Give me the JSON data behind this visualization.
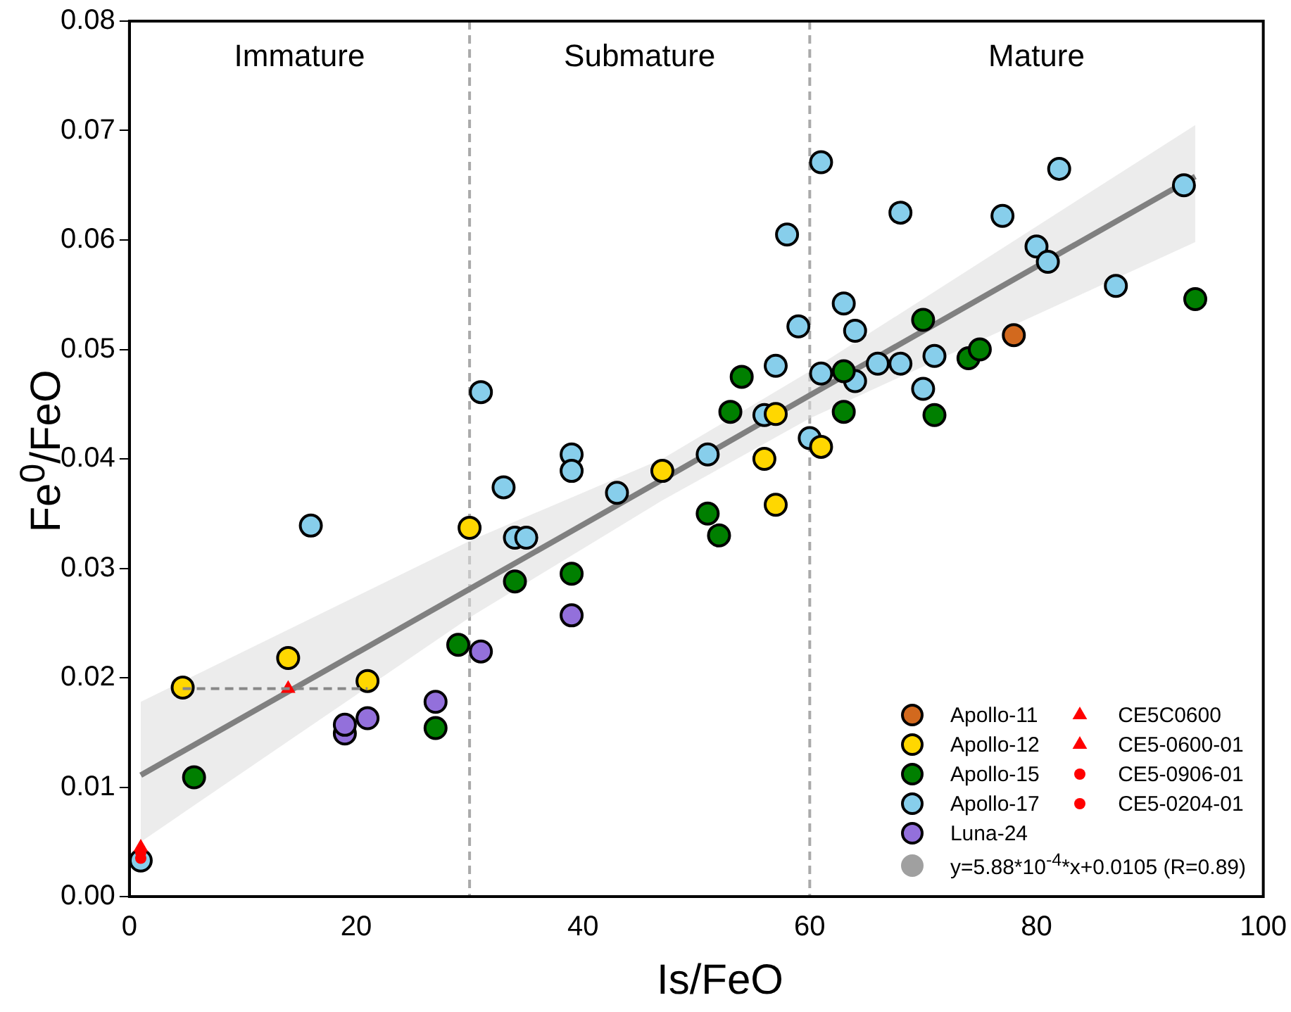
{
  "chart_data": {
    "type": "scatter",
    "xlabel": "Is/FeO",
    "ylabel": "Fe$^{0}$/FeO",
    "xlim": [
      0,
      100
    ],
    "xticks": [
      0,
      20,
      40,
      60,
      80,
      100
    ],
    "ylim": [
      0,
      0.08
    ],
    "yticks": [
      {
        "value": 0,
        "label": "0.00"
      },
      {
        "value": 0.01,
        "label": "0.01"
      },
      {
        "value": 0.02,
        "label": "0.02"
      },
      {
        "value": 0.03,
        "label": "0.03"
      },
      {
        "value": 0.04,
        "label": "0.04"
      },
      {
        "value": 0.05,
        "label": "0.05"
      },
      {
        "value": 0.06,
        "label": "0.06"
      },
      {
        "value": 0.07,
        "label": "0.07"
      },
      {
        "value": 0.08,
        "label": "0.08"
      }
    ],
    "grid": false,
    "legend": "bottom right",
    "ref_lines": [
      {
        "axis": "x",
        "value": 30,
        "color": "#aaaaaa",
        "line_style": "dashed"
      },
      {
        "axis": "x",
        "value": 60,
        "color": "#aaaaaa",
        "line_style": "dashed"
      }
    ],
    "annotations": [
      "Immature",
      "Submature",
      "Mature"
    ],
    "series": [
      {
        "name": "y=5.88*10$^{-4}$*x+0.0105 (R=0.89)",
        "type": "line",
        "color": "#808080",
        "marker": "none",
        "x": [
          1,
          30,
          47,
          60,
          94
        ],
        "values": [
          0.0111,
          0.0281,
          0.0381,
          0.0458,
          0.0658
        ],
        "lower": [
          0.005,
          0.0255,
          0.0362,
          0.0437,
          0.0598
        ],
        "upper": [
          0.0178,
          0.0325,
          0.04,
          0.048,
          0.0705
        ]
      },
      {
        "name": "Apollo-11",
        "type": "scatter",
        "marker": "circle",
        "color": "#d2691e",
        "x": [
          78
        ],
        "values": [
          0.0513
        ]
      },
      {
        "name": "Apollo-12",
        "type": "scatter",
        "marker": "circle",
        "color": "#ffd700",
        "x": [
          4.7,
          14,
          21,
          30,
          47,
          56,
          57,
          57,
          61
        ],
        "values": [
          0.0191,
          0.0218,
          0.0197,
          0.0337,
          0.0389,
          0.04,
          0.0358,
          0.0441,
          0.0411
        ]
      },
      {
        "name": "Apollo-15",
        "type": "scatter",
        "marker": "circle",
        "color": "#007f00",
        "x": [
          5.7,
          27,
          29,
          34,
          39,
          51,
          52,
          53,
          54,
          63,
          63,
          70,
          71,
          74,
          75,
          94
        ],
        "values": [
          0.0109,
          0.0154,
          0.023,
          0.0288,
          0.0295,
          0.035,
          0.033,
          0.0443,
          0.0475,
          0.048,
          0.0443,
          0.0527,
          0.044,
          0.0492,
          0.05,
          0.0546
        ]
      },
      {
        "name": "Apollo-17",
        "type": "scatter",
        "marker": "circle",
        "color": "#87ceeb",
        "x": [
          1,
          16,
          31,
          33,
          34,
          35,
          39,
          39,
          43,
          51,
          56,
          57,
          58,
          59,
          60,
          61,
          61,
          63,
          64,
          64,
          66,
          68,
          68,
          70,
          71,
          77,
          80,
          81,
          82,
          87,
          93
        ],
        "values": [
          0.0033,
          0.0339,
          0.0461,
          0.0374,
          0.0328,
          0.0328,
          0.0404,
          0.0389,
          0.0369,
          0.0404,
          0.044,
          0.0485,
          0.0605,
          0.0521,
          0.0419,
          0.0478,
          0.0671,
          0.0542,
          0.0517,
          0.0471,
          0.0487,
          0.0625,
          0.0487,
          0.0464,
          0.0494,
          0.0622,
          0.0594,
          0.058,
          0.0665,
          0.0558,
          0.065
        ]
      },
      {
        "name": "Luna-24",
        "type": "scatter",
        "marker": "circle",
        "color": "#9370db",
        "x": [
          19,
          19,
          21,
          27,
          31,
          39
        ],
        "values": [
          0.0149,
          0.0157,
          0.0163,
          0.0178,
          0.0224,
          0.0257
        ]
      },
      {
        "name": "CE5C0600",
        "type": "scatter",
        "marker": "triangle",
        "color": "#ff0000",
        "x": [
          14
        ],
        "values": [
          0.019
        ],
        "xerrors": [
          [
            4.7,
            21
          ]
        ]
      },
      {
        "name": "CE5-0600-01",
        "type": "scatter",
        "marker": "triangle",
        "color": "#ff0000",
        "x": [
          1
        ],
        "values": [
          0.0045
        ]
      },
      {
        "name": "CE5-0906-01",
        "type": "scatter",
        "marker": "circle",
        "color": "#ff0000",
        "x": [
          1
        ],
        "values": [
          0.004
        ]
      },
      {
        "name": "CE5-0204-01",
        "type": "scatter",
        "marker": "circle",
        "color": "#ff0000",
        "x": [
          1
        ],
        "values": [
          0.0035
        ]
      }
    ]
  }
}
